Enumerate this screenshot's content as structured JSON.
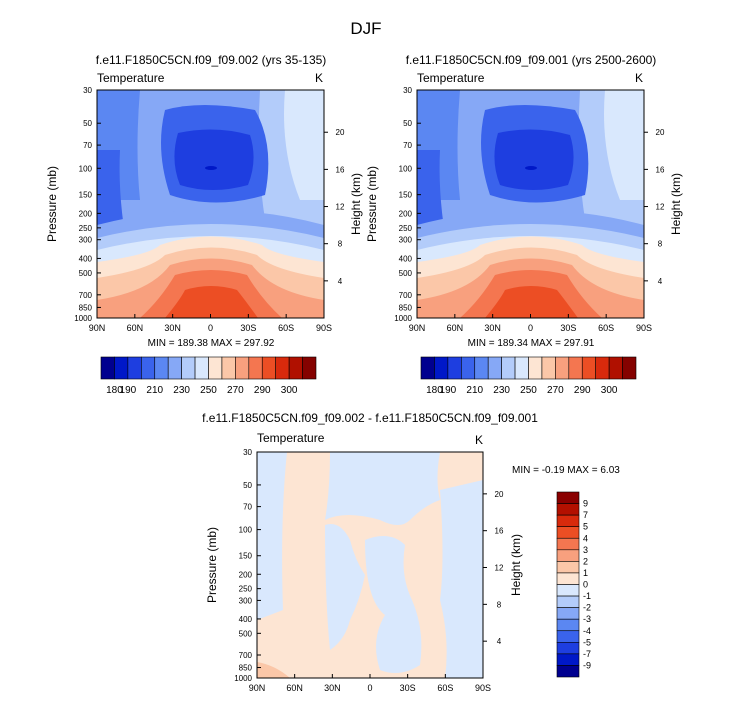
{
  "title": "DJF",
  "chart_data": [
    {
      "type": "heatmap",
      "panel": "left",
      "title": "f.e11.F1850C5CN.f09_f09.002 (yrs 35-135)",
      "left_label": "Temperature",
      "right_label": "K",
      "xlabel": "",
      "ylabel": "Pressure (mb)",
      "ylabel_right": "Height (km)",
      "x_ticks": [
        "90N",
        "60N",
        "30N",
        "0",
        "30S",
        "60S",
        "90S"
      ],
      "y_ticks": [
        "30",
        "50",
        "70",
        "100",
        "150",
        "200",
        "250",
        "300",
        "400",
        "500",
        "700",
        "850",
        "1000"
      ],
      "y_ticks_right": [
        "20",
        "16",
        "12",
        "8",
        "4"
      ],
      "min_max": "MIN = 189.38  MAX = 297.92",
      "colorbar_labels": [
        "180",
        "190",
        "210",
        "230",
        "250",
        "270",
        "290",
        "300"
      ]
    },
    {
      "type": "heatmap",
      "panel": "right",
      "title": "f.e11.F1850C5CN.f09_f09.001 (yrs 2500-2600)",
      "left_label": "Temperature",
      "right_label": "K",
      "xlabel": "",
      "ylabel": "Pressure (mb)",
      "ylabel_right": "Height (km)",
      "x_ticks": [
        "90N",
        "60N",
        "30N",
        "0",
        "30S",
        "60S",
        "90S"
      ],
      "y_ticks": [
        "30",
        "50",
        "70",
        "100",
        "150",
        "200",
        "250",
        "300",
        "400",
        "500",
        "700",
        "850",
        "1000"
      ],
      "y_ticks_right": [
        "20",
        "16",
        "12",
        "8",
        "4"
      ],
      "min_max": "MIN = 189.34  MAX = 297.91",
      "colorbar_labels": [
        "180",
        "190",
        "210",
        "230",
        "250",
        "270",
        "290",
        "300"
      ]
    },
    {
      "type": "heatmap",
      "panel": "difference",
      "title": "f.e11.F1850C5CN.f09_f09.002 - f.e11.F1850C5CN.f09_f09.001",
      "left_label": "Temperature",
      "right_label": "K",
      "xlabel": "",
      "ylabel": "Pressure (mb)",
      "ylabel_right": "Height (km)",
      "x_ticks": [
        "90N",
        "60N",
        "30N",
        "0",
        "30S",
        "60S",
        "90S"
      ],
      "y_ticks": [
        "30",
        "50",
        "70",
        "100",
        "150",
        "200",
        "250",
        "300",
        "400",
        "500",
        "700",
        "850",
        "1000"
      ],
      "y_ticks_right": [
        "20",
        "16",
        "12",
        "8",
        "4"
      ],
      "min_max": "MIN =  -0.19  MAX =   6.03",
      "colorbar_labels": [
        "9",
        "7",
        "5",
        "4",
        "3",
        "2",
        "1",
        "0",
        "-1",
        "-2",
        "-3",
        "-4",
        "-5",
        "-7",
        "-9"
      ]
    }
  ],
  "colors": {
    "abs_scale": [
      "#00008f",
      "#0018c8",
      "#1e3ee0",
      "#3a63ec",
      "#5b87f2",
      "#86a8f6",
      "#b3ccfa",
      "#d9e8fd",
      "#fde5d3",
      "#fbc7a8",
      "#f8a07e",
      "#f47650",
      "#ec4e24",
      "#d82a0c",
      "#b01000",
      "#850200"
    ],
    "diff_scale": [
      "#8a0000",
      "#b31000",
      "#d82a0c",
      "#ec4e24",
      "#f47650",
      "#f8a07e",
      "#fbc7a8",
      "#fde5d3",
      "#d9e8fd",
      "#b3ccfa",
      "#86a8f6",
      "#5b87f2",
      "#3a63ec",
      "#1e3ee0",
      "#0018c8",
      "#00008f"
    ]
  }
}
